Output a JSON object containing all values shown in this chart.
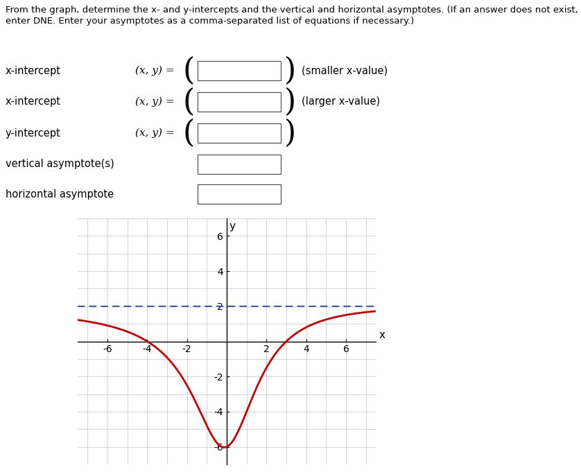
{
  "xlim": [
    -7.5,
    7.5
  ],
  "ylim": [
    -7,
    7
  ],
  "xticks": [
    -6,
    -4,
    -2,
    2,
    4,
    6
  ],
  "yticks": [
    -6,
    -4,
    -2,
    2,
    4,
    6
  ],
  "curve_color": "#cc0000",
  "asymptote_color": "#3355cc",
  "asymptote_y": 2,
  "curve_lw": 2.0,
  "asymptote_lw": 1.5,
  "grid_color": "#cccccc",
  "bg_color": "#ffffff",
  "text_color": "#000000",
  "xlabel": "x",
  "ylabel": "y",
  "header_line1": "From the graph, determine the x- and y-intercepts and the vertical and horizontal asymptotes. (If an answer does not exist,",
  "header_line2": "enter DNE. Enter your asymptotes as a comma-separated list of equations if necessary.)",
  "row_labels": [
    "x-intercept",
    "x-intercept",
    "y-intercept",
    "vertical asymptote(s)",
    "horizontal asymptote"
  ],
  "row_annotations": [
    "(smaller x-value)",
    "(larger x-value)",
    "",
    "",
    ""
  ],
  "row_show_xy": [
    true,
    true,
    true,
    false,
    false
  ]
}
